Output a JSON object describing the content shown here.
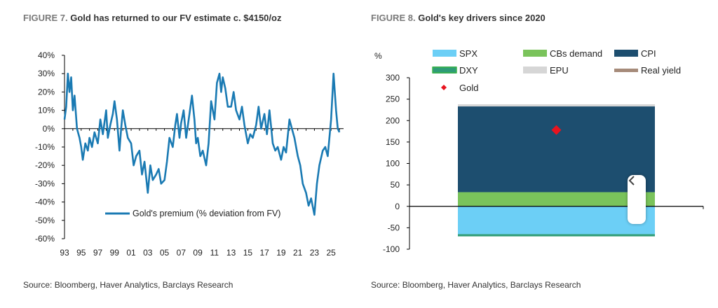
{
  "left": {
    "figure_num": "FIGURE 7.",
    "title": "Gold has returned to our FV estimate c. $4150/oz",
    "source": "Source: Bloomberg, Haver Analytics, Barclays Research"
  },
  "right": {
    "figure_num": "FIGURE 8.",
    "title": "Gold's key drivers since 2020",
    "source": "Source: Bloomberg, Haver Analytics, Barclays Research"
  },
  "chart_data": [
    {
      "type": "line",
      "title": "Gold has returned to our FV estimate c. $4150/oz",
      "xlabel": "",
      "ylabel": "",
      "ylim": [
        -60,
        40
      ],
      "xlim": [
        1993,
        2026.5
      ],
      "y_ticks": [
        40,
        30,
        20,
        10,
        0,
        -10,
        -20,
        -30,
        -40,
        -50,
        -60
      ],
      "y_tick_labels": [
        "40%",
        "30%",
        "20%",
        "10%",
        "0%",
        "-10%",
        "-20%",
        "-30%",
        "-40%",
        "-50%",
        "-60%"
      ],
      "x_tick_labels": [
        "93",
        "95",
        "97",
        "99",
        "01",
        "03",
        "05",
        "07",
        "09",
        "11",
        "13",
        "15",
        "17",
        "19",
        "21",
        "23",
        "25"
      ],
      "legend_position": "bottom-center",
      "color": "#1a7ab3",
      "series": [
        {
          "name": "Gold's premium (% deviation from FV)",
          "x": [
            1993.0,
            1993.2,
            1993.4,
            1993.6,
            1993.8,
            1994.0,
            1994.2,
            1994.5,
            1994.8,
            1995.0,
            1995.2,
            1995.5,
            1995.8,
            1996.0,
            1996.3,
            1996.6,
            1997.0,
            1997.3,
            1997.6,
            1998.0,
            1998.2,
            1998.5,
            1998.8,
            1999.0,
            1999.3,
            1999.6,
            1999.8,
            2000.0,
            2000.3,
            2000.6,
            2001.0,
            2001.3,
            2001.6,
            2002.0,
            2002.3,
            2002.6,
            2003.0,
            2003.3,
            2003.6,
            2004.0,
            2004.3,
            2004.6,
            2005.0,
            2005.3,
            2005.6,
            2006.0,
            2006.3,
            2006.5,
            2006.8,
            2007.0,
            2007.3,
            2007.6,
            2008.0,
            2008.3,
            2008.6,
            2008.8,
            2009.0,
            2009.3,
            2009.6,
            2010.0,
            2010.3,
            2010.6,
            2011.0,
            2011.3,
            2011.6,
            2011.8,
            2012.0,
            2012.3,
            2012.6,
            2013.0,
            2013.3,
            2013.6,
            2014.0,
            2014.3,
            2014.6,
            2015.0,
            2015.3,
            2015.6,
            2016.0,
            2016.3,
            2016.6,
            2017.0,
            2017.3,
            2017.6,
            2018.0,
            2018.3,
            2018.6,
            2019.0,
            2019.3,
            2019.6,
            2020.0,
            2020.3,
            2020.6,
            2021.0,
            2021.3,
            2021.6,
            2022.0,
            2022.3,
            2022.6,
            2023.0,
            2023.3,
            2023.6,
            2024.0,
            2024.3,
            2024.6,
            2025.0,
            2025.3,
            2025.6,
            2025.8,
            2026.0
          ],
          "y": [
            5,
            12,
            30,
            20,
            28,
            10,
            18,
            0,
            -5,
            -10,
            -17,
            -8,
            -12,
            -5,
            -10,
            -2,
            -8,
            5,
            -3,
            10,
            -5,
            2,
            8,
            15,
            5,
            -12,
            0,
            10,
            2,
            -5,
            -8,
            -20,
            -15,
            -12,
            -25,
            -18,
            -35,
            -20,
            -28,
            -25,
            -22,
            -30,
            -28,
            -18,
            -5,
            -10,
            2,
            8,
            -5,
            3,
            10,
            -5,
            8,
            18,
            5,
            -8,
            -5,
            -15,
            -12,
            -20,
            -8,
            15,
            5,
            25,
            30,
            20,
            28,
            22,
            12,
            12,
            20,
            10,
            5,
            12,
            2,
            -8,
            -3,
            -5,
            2,
            12,
            0,
            8,
            -3,
            10,
            -8,
            -12,
            -10,
            -17,
            -10,
            -13,
            5,
            0,
            -5,
            -15,
            -20,
            -30,
            -35,
            -42,
            -38,
            -47,
            -30,
            -20,
            -12,
            -10,
            -15,
            5,
            30,
            10,
            0,
            -2
          ]
        }
      ]
    },
    {
      "type": "bar",
      "stacked": true,
      "title": "Gold's key drivers since 2020",
      "ylabel": "%",
      "ylim": [
        -100,
        300
      ],
      "y_ticks": [
        300,
        250,
        200,
        150,
        100,
        50,
        0,
        -50,
        -100
      ],
      "legend_position": "top",
      "categories": [
        ""
      ],
      "series": [
        {
          "name": "SPX",
          "color": "#6ccff6",
          "values": [
            -65
          ]
        },
        {
          "name": "CBs demand",
          "color": "#7ac35b",
          "values": [
            33
          ]
        },
        {
          "name": "CPI",
          "color": "#1d4e6f",
          "values": [
            200
          ]
        },
        {
          "name": "DXY",
          "color": "#2e9c76",
          "values": [
            -5
          ]
        },
        {
          "name": "EPU",
          "color": "#d6d6d6",
          "values": [
            5
          ]
        },
        {
          "name": "Real yield",
          "color": "#a68b7a",
          "values": [
            0
          ]
        }
      ],
      "gold": {
        "name": "Gold",
        "color": "#e8141f",
        "value": 178
      }
    }
  ]
}
